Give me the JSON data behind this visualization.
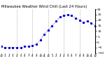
{
  "title": "Milwaukee Weather Wind Chill (Last 24 Hours)",
  "title_fontsize": 3.8,
  "title_color": "#000000",
  "bg_color": "#ffffff",
  "line_color": "#0000cc",
  "grid_color": "#888888",
  "x_values": [
    0,
    1,
    2,
    3,
    4,
    5,
    6,
    7,
    8,
    9,
    10,
    11,
    12,
    13,
    14,
    15,
    16,
    17,
    18,
    19,
    20,
    21,
    22,
    23,
    24
  ],
  "y_values": [
    -4,
    -5,
    -5,
    -5,
    -5,
    -5,
    -4,
    -4,
    -3,
    -2,
    2,
    7,
    11,
    15,
    19,
    23,
    24,
    25,
    24,
    22,
    20,
    18,
    19,
    17,
    15
  ],
  "ylim": [
    -10,
    30
  ],
  "yticks": [
    -10,
    -5,
    0,
    5,
    10,
    15,
    20,
    25,
    30
  ],
  "ylabel_fontsize": 3.2,
  "xlabel_fontsize": 2.8,
  "xtick_labels": [
    "12",
    "1",
    "2",
    "3",
    "4",
    "5",
    "6",
    "7",
    "8",
    "9",
    "10",
    "11",
    "12",
    "1",
    "2",
    "3",
    "4",
    "5",
    "6",
    "7",
    "8",
    "9",
    "10",
    "11",
    "12"
  ],
  "marker": "s",
  "markersize": 1.2,
  "linewidth": 0.5,
  "linestyle": "dotted",
  "vline_positions": [
    4,
    8,
    12,
    16,
    20,
    24
  ],
  "num_points": 25
}
